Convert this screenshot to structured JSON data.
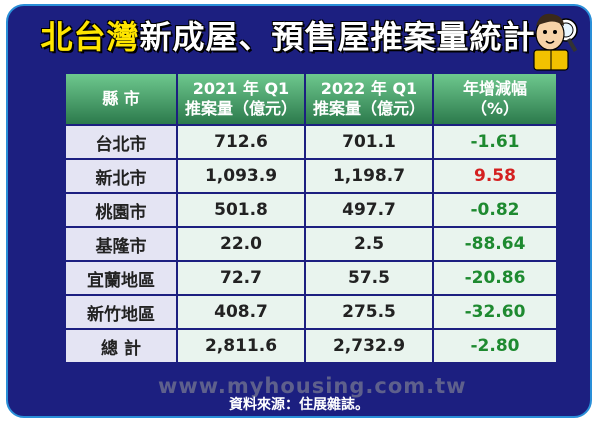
{
  "title": {
    "highlight": "北台灣",
    "rest": "新成屋、預售屋推案量統計"
  },
  "table": {
    "headers": [
      {
        "line1": "縣 市",
        "line2": ""
      },
      {
        "line1": "2021 年 Q1",
        "line2": "推案量（億元）"
      },
      {
        "line1": "2022 年 Q1",
        "line2": "推案量（億元）"
      },
      {
        "line1": "年增減幅",
        "line2": "（%）"
      }
    ],
    "rows": [
      [
        "台北市",
        "712.6",
        "701.1",
        "-1.61"
      ],
      [
        "新北市",
        "1,093.9",
        "1,198.7",
        "9.58"
      ],
      [
        "桃園市",
        "501.8",
        "497.7",
        "-0.82"
      ],
      [
        "基隆市",
        "22.0",
        "2.5",
        "-88.64"
      ],
      [
        "宜蘭地區",
        "72.7",
        "57.5",
        "-20.86"
      ],
      [
        "新竹地區",
        "408.7",
        "275.5",
        "-32.60"
      ],
      [
        "總 計",
        "2,811.6",
        "2,732.9",
        "-2.80"
      ]
    ]
  },
  "chart_data": {
    "type": "table",
    "title": "北台灣新成屋、預售屋推案量統計",
    "columns": [
      "縣 市",
      "2021 年 Q1 推案量（億元）",
      "2022 年 Q1 推案量（億元）",
      "年增減幅（%）"
    ],
    "categories": [
      "台北市",
      "新北市",
      "桃園市",
      "基隆市",
      "宜蘭地區",
      "新竹地區",
      "總 計"
    ],
    "series": [
      {
        "name": "2021 年 Q1 推案量（億元）",
        "values": [
          712.6,
          1093.9,
          501.8,
          22.0,
          72.7,
          408.7,
          2811.6
        ]
      },
      {
        "name": "2022 年 Q1 推案量（億元）",
        "values": [
          701.1,
          1198.7,
          497.7,
          2.5,
          57.5,
          275.5,
          2732.9
        ]
      },
      {
        "name": "年增減幅（%）",
        "values": [
          -1.61,
          9.58,
          -0.82,
          -88.64,
          -20.86,
          -32.6,
          -2.8
        ]
      }
    ]
  },
  "watermark": "www.myhousing.com.tw",
  "source": "資料來源：住展雜誌。",
  "colors": {
    "background": "#1c1f80",
    "header": "#2c7a4c",
    "negative": "#1e8a30",
    "positive": "#d42020",
    "title_highlight": "#ffe600"
  }
}
